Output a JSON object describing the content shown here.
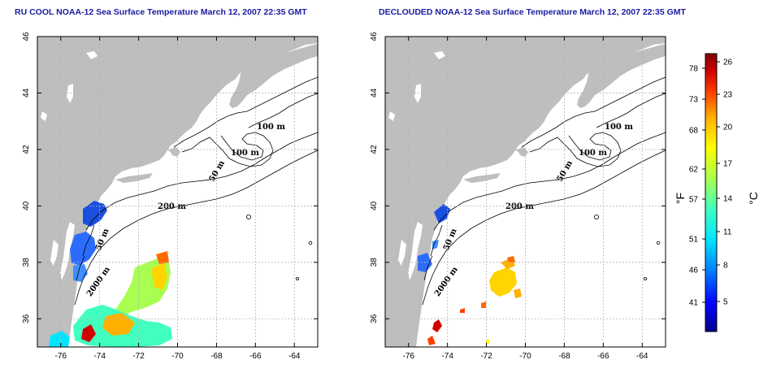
{
  "panels": [
    {
      "id": "left",
      "title": "RU COOL NOAA-12 Sea Surface Temperature March 12, 2007 22:35 GMT",
      "contour_labels": [
        "100 m",
        "100 m",
        "50 m",
        "200 m",
        "50 m",
        "2000 m"
      ]
    },
    {
      "id": "right",
      "title": "DECLOUDED NOAA-12 Sea Surface Temperature March 12, 2007 22:35 GMT",
      "contour_labels": [
        "100 m",
        "100 m",
        "50 m",
        "200 m",
        "50 m",
        "2000 m"
      ]
    }
  ],
  "axes": {
    "x_ticks": [
      "-76",
      "-74",
      "-72",
      "-70",
      "-68",
      "-66",
      "-64"
    ],
    "y_ticks": [
      "46",
      "44",
      "42",
      "40",
      "38",
      "36"
    ],
    "x_tick_values": [
      -76,
      -74,
      -72,
      -70,
      -68,
      -66,
      -64
    ],
    "y_tick_values": [
      46,
      44,
      42,
      40,
      38,
      36
    ],
    "lon_range": [
      -77.2,
      -62.8
    ],
    "lat_range": [
      35.0,
      46.0
    ],
    "grid": true
  },
  "colorbar": {
    "fahrenheit_label": "°F",
    "celsius_label": "°C",
    "fahrenheit_ticks": [
      "78",
      "73",
      "68",
      "62",
      "57",
      "51",
      "46",
      "41"
    ],
    "celsius_ticks": [
      "26",
      "23",
      "20",
      "17",
      "14",
      "11",
      "8",
      "5"
    ],
    "colors": [
      "#00008b",
      "#0000ff",
      "#0080ff",
      "#00e5ff",
      "#40ffbf",
      "#a8ff50",
      "#ffff00",
      "#ffb000",
      "#ff4000",
      "#d00000",
      "#800000"
    ]
  },
  "colors": {
    "land": "#bebebe",
    "title": "#1a1aa0",
    "grid": "#b4b4b4"
  }
}
